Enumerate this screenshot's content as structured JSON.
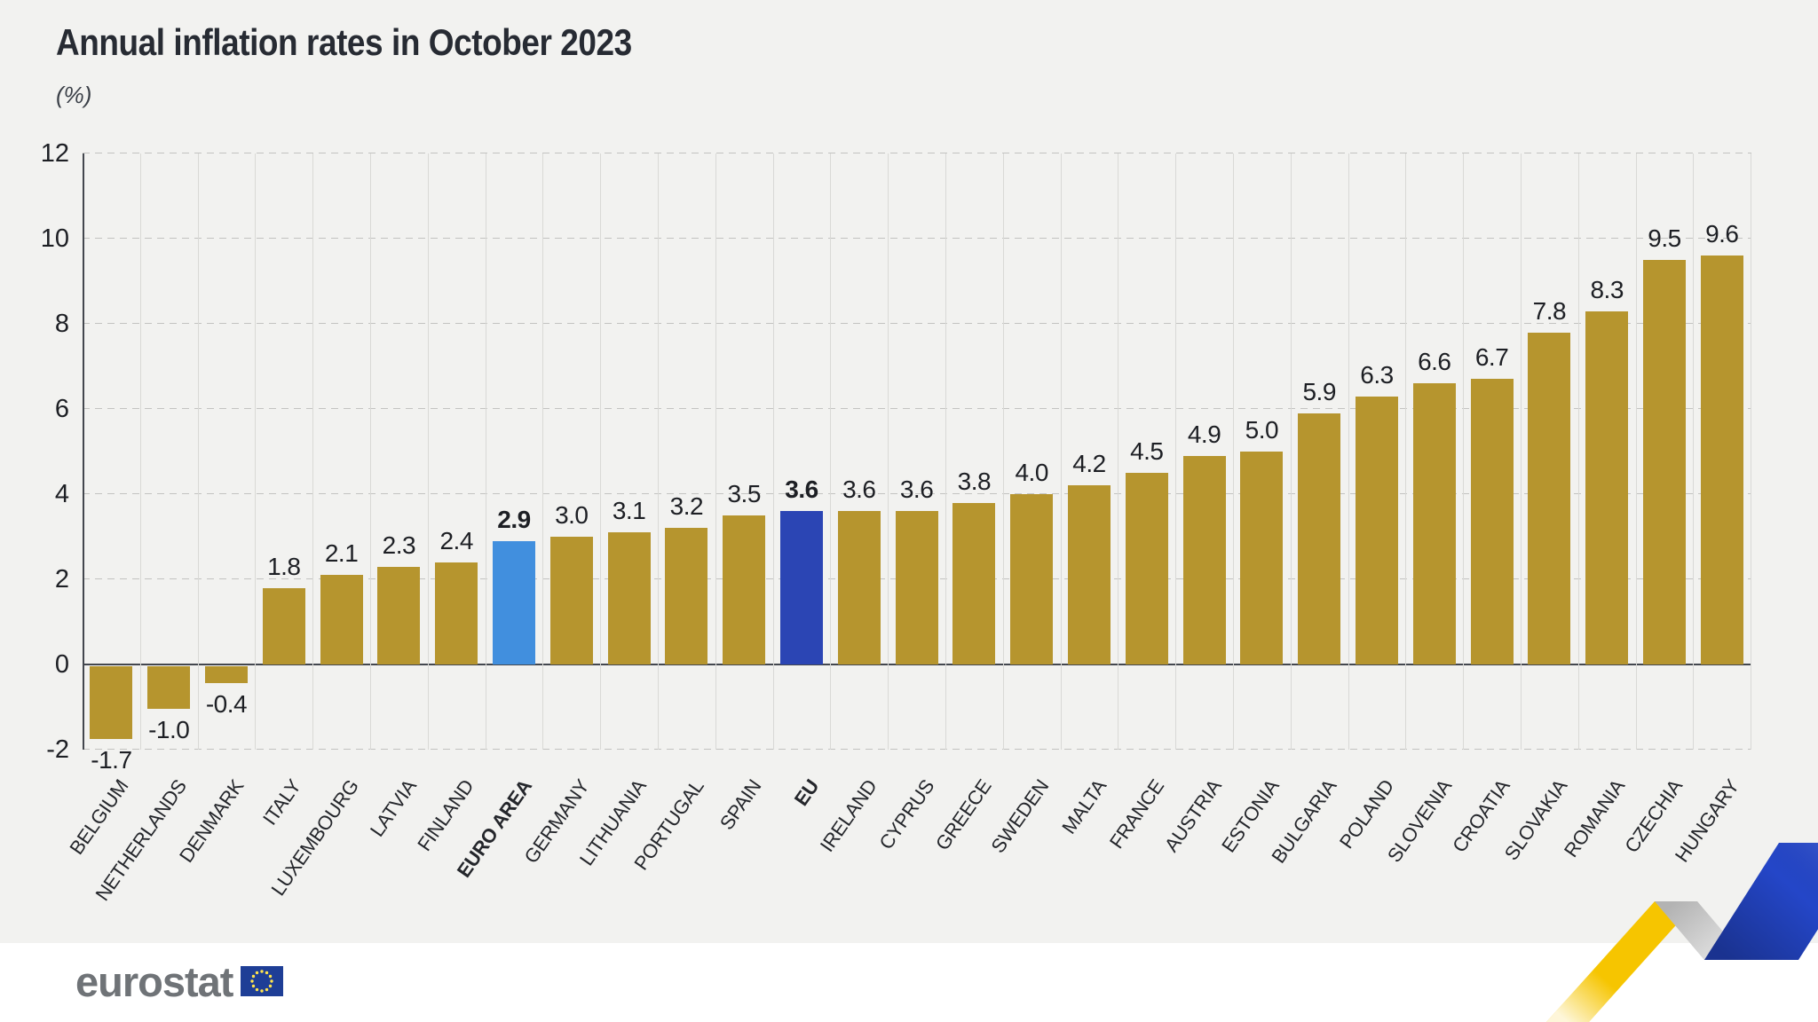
{
  "header": {
    "title": "Annual inflation rates in October 2023",
    "subtitle": "(%)"
  },
  "chart_data": {
    "type": "bar",
    "title": "Annual inflation rates in October 2023",
    "subtitle": "(%)",
    "ylabel": "(%)",
    "ylim": [
      -2,
      12
    ],
    "y_ticks": [
      12,
      10,
      8,
      6,
      4,
      2,
      0,
      -2
    ],
    "grid": "horizontal dashed gridlines, vertical category separators, dark zero line",
    "legend": "none",
    "categories": [
      "BELGIUM",
      "NETHERLANDS",
      "DENMARK",
      "ITALY",
      "LUXEMBOURG",
      "LATVIA",
      "FINLAND",
      "EURO AREA",
      "GERMANY",
      "LITHUANIA",
      "PORTUGAL",
      "SPAIN",
      "EU",
      "IRELAND",
      "CYPRUS",
      "GREECE",
      "SWEDEN",
      "MALTA",
      "FRANCE",
      "AUSTRIA",
      "ESTONIA",
      "BULGARIA",
      "POLAND",
      "SLOVENIA",
      "CROATIA",
      "SLOVAKIA",
      "ROMANIA",
      "CZECHIA",
      "HUNGARY"
    ],
    "values": [
      -1.7,
      -1.0,
      -0.4,
      1.8,
      2.1,
      2.3,
      2.4,
      2.9,
      3.0,
      3.1,
      3.2,
      3.5,
      3.6,
      3.6,
      3.6,
      3.8,
      4.0,
      4.2,
      4.5,
      4.9,
      5.0,
      5.9,
      6.3,
      6.6,
      6.7,
      7.8,
      8.3,
      9.5,
      9.6
    ],
    "value_labels": [
      "-1.7",
      "-1.0",
      "-0.4",
      "1.8",
      "2.1",
      "2.3",
      "2.4",
      "2.9",
      "3.0",
      "3.1",
      "3.2",
      "3.5",
      "3.6",
      "3.6",
      "3.6",
      "3.8",
      "4.0",
      "4.2",
      "4.5",
      "4.9",
      "5.0",
      "5.9",
      "6.3",
      "6.6",
      "6.7",
      "7.8",
      "8.3",
      "9.5",
      "9.6"
    ],
    "bold_categories": [
      "EURO AREA",
      "EU"
    ],
    "colors": {
      "bar_default": "#b6952e",
      "bar_euro_area": "#418fde",
      "bar_eu": "#2b45b4"
    },
    "highlighted_bars": {
      "EURO AREA": "bar_euro_area",
      "EU": "bar_eu"
    }
  },
  "footer": {
    "logo_text": "eurostat"
  },
  "decor": {
    "flag_blue": "#1e3e96",
    "flag_stars": "#ffe44d",
    "logo_gray": "#6f7377",
    "ribbon_yellow": "#f6c500",
    "ribbon_gray": "#b3b3b3",
    "ribbon_blue": "#2446c8",
    "panel_background": "#f2f2f0"
  }
}
